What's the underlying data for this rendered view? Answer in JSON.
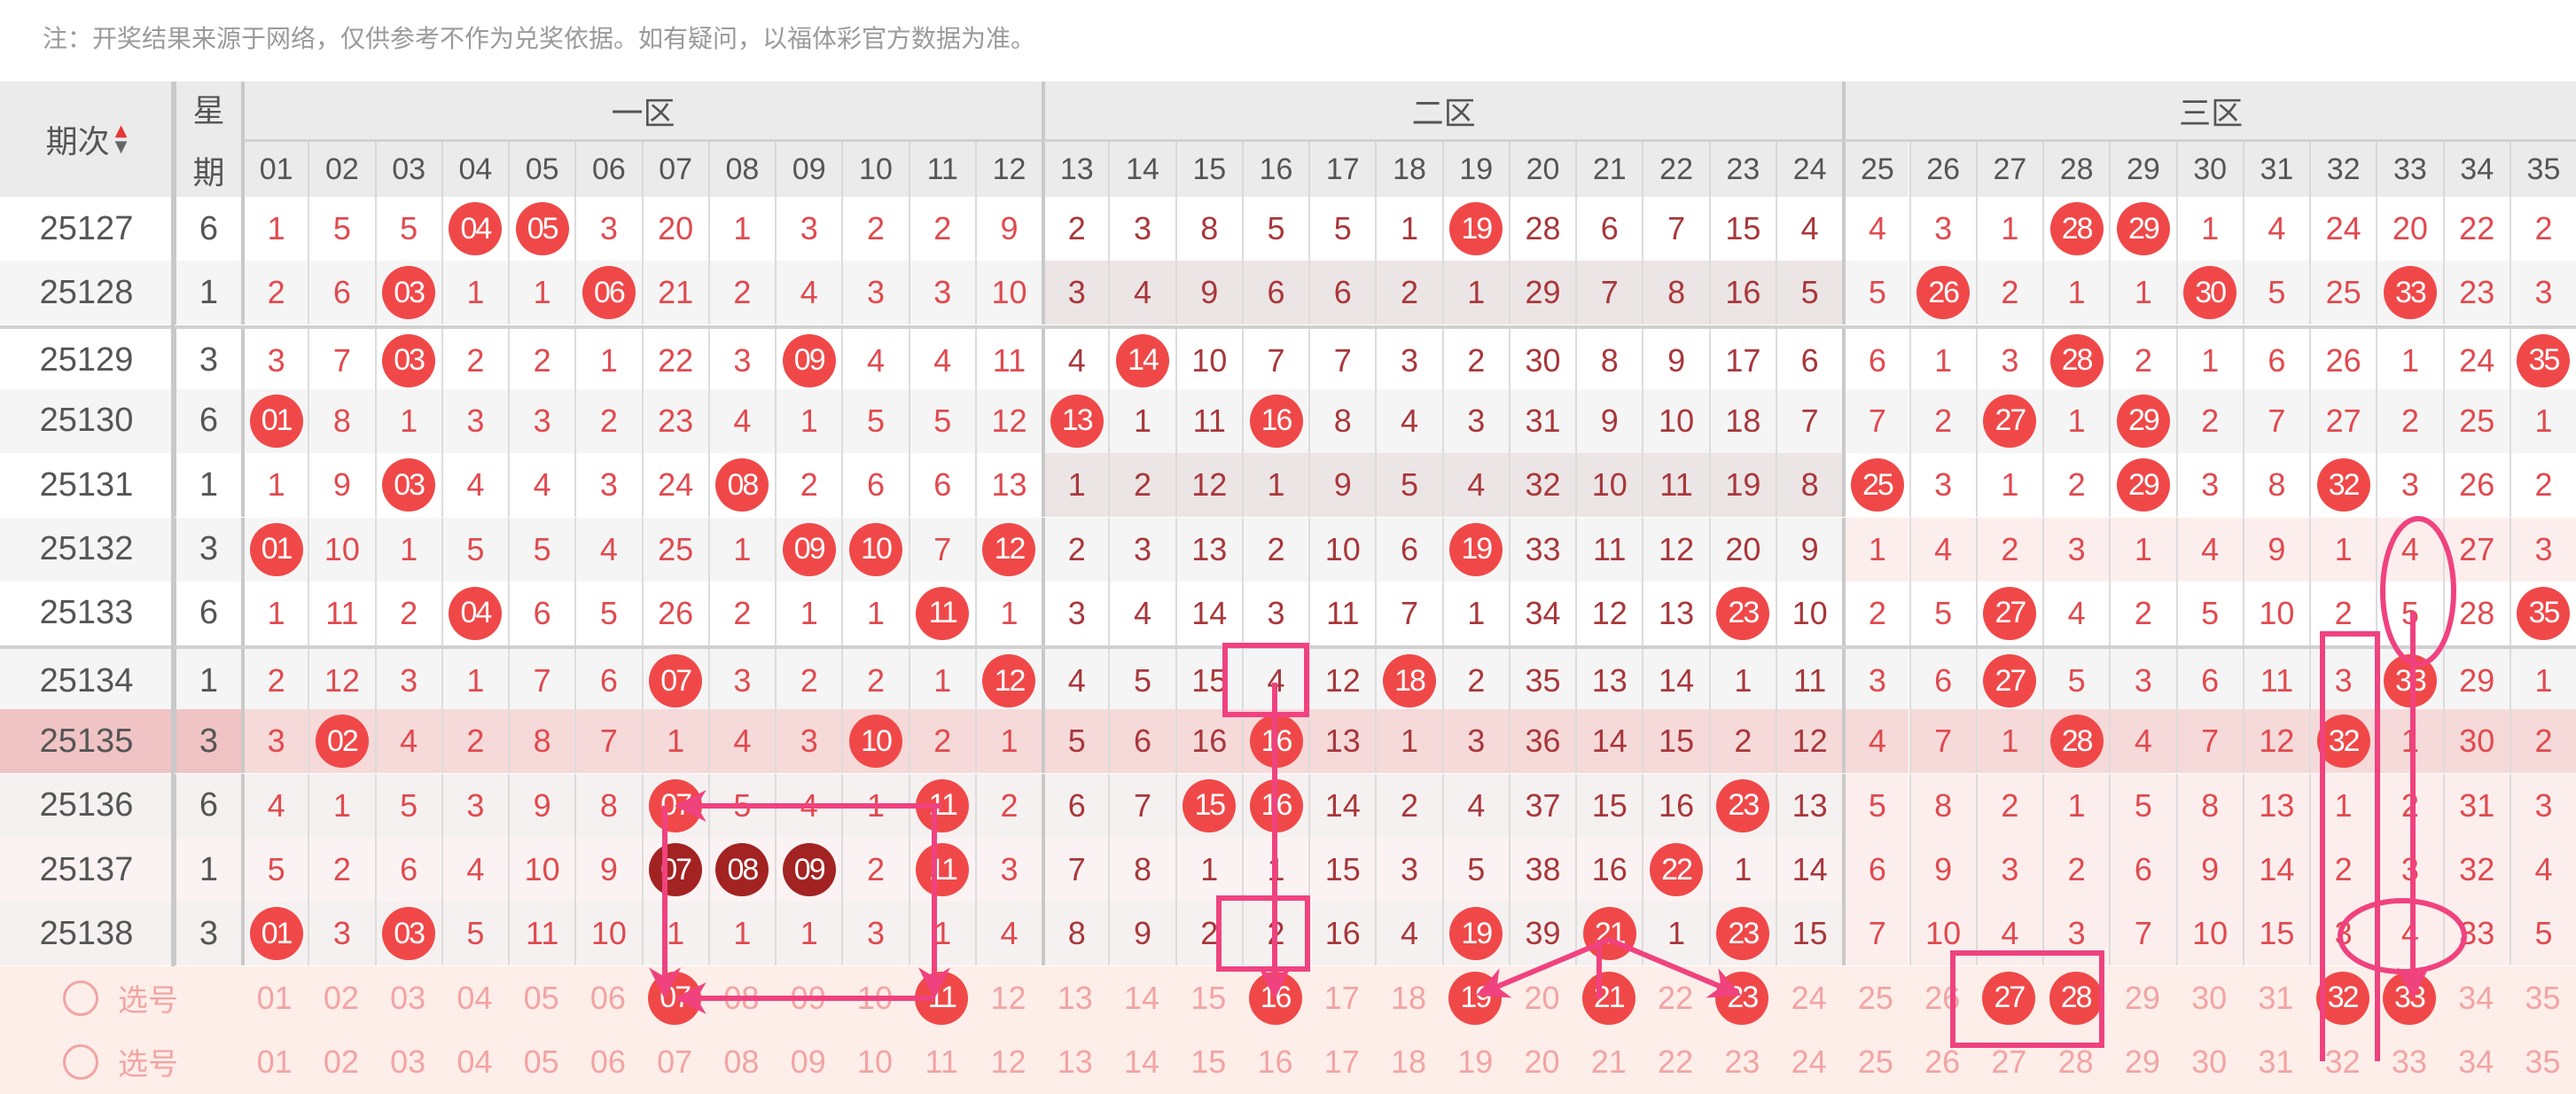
{
  "note": "注：开奖结果来源于网络，仅供参考不作为兑奖依据。如有疑问，以福体彩官方数据为准。",
  "header": {
    "period_label": "期次",
    "weekday_label_top": "星",
    "weekday_label_bottom": "期",
    "zones": [
      "一区",
      "二区",
      "三区"
    ],
    "columns": [
      "01",
      "02",
      "03",
      "04",
      "05",
      "06",
      "07",
      "08",
      "09",
      "10",
      "11",
      "12",
      "13",
      "14",
      "15",
      "16",
      "17",
      "18",
      "19",
      "20",
      "21",
      "22",
      "23",
      "24",
      "25",
      "26",
      "27",
      "28",
      "29",
      "30",
      "31",
      "32",
      "33",
      "34",
      "35"
    ]
  },
  "rows": [
    {
      "period": "25127",
      "weekday": "6",
      "values": [
        "1",
        "5",
        "5",
        "04",
        "05",
        "3",
        "20",
        "1",
        "3",
        "2",
        "2",
        "9",
        "2",
        "3",
        "8",
        "5",
        "5",
        "1",
        "19",
        "28",
        "6",
        "7",
        "15",
        "4",
        "4",
        "3",
        "1",
        "28",
        "29",
        "1",
        "4",
        "24",
        "20",
        "22",
        "2"
      ],
      "hits": [
        "04",
        "05",
        "19",
        "28",
        "29"
      ],
      "dark_hits": []
    },
    {
      "period": "25128",
      "weekday": "1",
      "values": [
        "2",
        "6",
        "03",
        "1",
        "1",
        "06",
        "21",
        "2",
        "4",
        "3",
        "3",
        "10",
        "3",
        "4",
        "9",
        "6",
        "6",
        "2",
        "1",
        "29",
        "7",
        "8",
        "16",
        "5",
        "5",
        "26",
        "2",
        "1",
        "1",
        "30",
        "5",
        "25",
        "33",
        "23",
        "3"
      ],
      "hits": [
        "03",
        "06",
        "26",
        "30",
        "33"
      ],
      "dark_hits": []
    },
    {
      "period": "25129",
      "weekday": "3",
      "values": [
        "3",
        "7",
        "03",
        "2",
        "2",
        "1",
        "22",
        "3",
        "09",
        "4",
        "4",
        "11",
        "4",
        "14",
        "10",
        "7",
        "7",
        "3",
        "2",
        "30",
        "8",
        "9",
        "17",
        "6",
        "6",
        "1",
        "3",
        "28",
        "2",
        "1",
        "6",
        "26",
        "1",
        "24",
        "35"
      ],
      "hits": [
        "03",
        "09",
        "14",
        "28",
        "35"
      ],
      "dark_hits": []
    },
    {
      "period": "25130",
      "weekday": "6",
      "values": [
        "01",
        "8",
        "1",
        "3",
        "3",
        "2",
        "23",
        "4",
        "1",
        "5",
        "5",
        "12",
        "13",
        "1",
        "11",
        "16",
        "8",
        "4",
        "3",
        "31",
        "9",
        "10",
        "18",
        "7",
        "7",
        "2",
        "27",
        "1",
        "29",
        "2",
        "7",
        "27",
        "2",
        "25",
        "1"
      ],
      "hits": [
        "01",
        "13",
        "16",
        "27",
        "29"
      ],
      "dark_hits": []
    },
    {
      "period": "25131",
      "weekday": "1",
      "values": [
        "1",
        "9",
        "03",
        "4",
        "4",
        "3",
        "24",
        "08",
        "2",
        "6",
        "6",
        "13",
        "1",
        "2",
        "12",
        "1",
        "9",
        "5",
        "4",
        "32",
        "10",
        "11",
        "19",
        "8",
        "25",
        "3",
        "1",
        "2",
        "29",
        "3",
        "8",
        "32",
        "3",
        "26",
        "2"
      ],
      "hits": [
        "03",
        "08",
        "25",
        "29",
        "32"
      ],
      "dark_hits": []
    },
    {
      "period": "25132",
      "weekday": "3",
      "values": [
        "01",
        "10",
        "1",
        "5",
        "5",
        "4",
        "25",
        "1",
        "09",
        "10",
        "7",
        "12",
        "2",
        "3",
        "13",
        "2",
        "10",
        "6",
        "19",
        "33",
        "11",
        "12",
        "20",
        "9",
        "1",
        "4",
        "2",
        "3",
        "1",
        "4",
        "9",
        "1",
        "4",
        "27",
        "3"
      ],
      "hits": [
        "01",
        "09",
        "10",
        "12",
        "19"
      ],
      "dark_hits": []
    },
    {
      "period": "25133",
      "weekday": "6",
      "values": [
        "1",
        "11",
        "2",
        "04",
        "6",
        "5",
        "26",
        "2",
        "1",
        "1",
        "11",
        "1",
        "3",
        "4",
        "14",
        "3",
        "11",
        "7",
        "1",
        "34",
        "12",
        "13",
        "23",
        "10",
        "2",
        "5",
        "27",
        "4",
        "2",
        "5",
        "10",
        "2",
        "5",
        "28",
        "35"
      ],
      "hits": [
        "04",
        "11",
        "23",
        "27",
        "35"
      ],
      "dark_hits": []
    },
    {
      "period": "25134",
      "weekday": "1",
      "values": [
        "2",
        "12",
        "3",
        "1",
        "7",
        "6",
        "07",
        "3",
        "2",
        "2",
        "1",
        "12",
        "4",
        "5",
        "15",
        "4",
        "12",
        "18",
        "2",
        "35",
        "13",
        "14",
        "1",
        "11",
        "3",
        "6",
        "27",
        "5",
        "3",
        "6",
        "11",
        "3",
        "33",
        "29",
        "1"
      ],
      "hits": [
        "07",
        "12",
        "18",
        "27",
        "33"
      ],
      "dark_hits": []
    },
    {
      "period": "25135",
      "weekday": "3",
      "values": [
        "3",
        "02",
        "4",
        "2",
        "8",
        "7",
        "1",
        "4",
        "3",
        "10",
        "2",
        "1",
        "5",
        "6",
        "16",
        "16",
        "13",
        "1",
        "3",
        "36",
        "14",
        "15",
        "2",
        "12",
        "4",
        "7",
        "1",
        "28",
        "4",
        "7",
        "12",
        "32",
        "1",
        "30",
        "2"
      ],
      "hits": [
        "02",
        "10",
        "16",
        "28",
        "32"
      ],
      "dark_hits": []
    },
    {
      "period": "25136",
      "weekday": "6",
      "values": [
        "4",
        "1",
        "5",
        "3",
        "9",
        "8",
        "07",
        "5",
        "4",
        "1",
        "11",
        "2",
        "6",
        "7",
        "15",
        "16",
        "14",
        "2",
        "4",
        "37",
        "15",
        "16",
        "23",
        "13",
        "5",
        "8",
        "2",
        "1",
        "5",
        "8",
        "13",
        "1",
        "2",
        "31",
        "3"
      ],
      "hits": [
        "07",
        "11",
        "15",
        "16",
        "23"
      ],
      "dark_hits": []
    },
    {
      "period": "25137",
      "weekday": "1",
      "values": [
        "5",
        "2",
        "6",
        "4",
        "10",
        "9",
        "07",
        "08",
        "09",
        "2",
        "11",
        "3",
        "7",
        "8",
        "1",
        "1",
        "15",
        "3",
        "5",
        "38",
        "16",
        "22",
        "1",
        "14",
        "6",
        "9",
        "3",
        "2",
        "6",
        "9",
        "14",
        "2",
        "3",
        "32",
        "4"
      ],
      "hits": [
        "11",
        "22"
      ],
      "dark_hits": [
        "07",
        "08",
        "09"
      ]
    },
    {
      "period": "25138",
      "weekday": "3",
      "values": [
        "01",
        "3",
        "03",
        "5",
        "11",
        "10",
        "1",
        "1",
        "1",
        "3",
        "1",
        "4",
        "8",
        "9",
        "2",
        "2",
        "16",
        "4",
        "19",
        "39",
        "21",
        "1",
        "23",
        "15",
        "7",
        "10",
        "4",
        "3",
        "7",
        "10",
        "15",
        "3",
        "4",
        "33",
        "5"
      ],
      "hits": [
        "01",
        "03",
        "19",
        "21",
        "23"
      ],
      "dark_hits": []
    }
  ],
  "selection_rows": [
    {
      "label": "选号",
      "selected": [
        "07",
        "11",
        "16",
        "19",
        "21",
        "23",
        "27",
        "28",
        "32",
        "33"
      ]
    },
    {
      "label": "选号",
      "selected": []
    }
  ],
  "colors": {
    "ball": "#f04848",
    "ball_dark": "#a32222",
    "annotation": "#f0427f",
    "highlight_row": "#f6d9d9"
  }
}
